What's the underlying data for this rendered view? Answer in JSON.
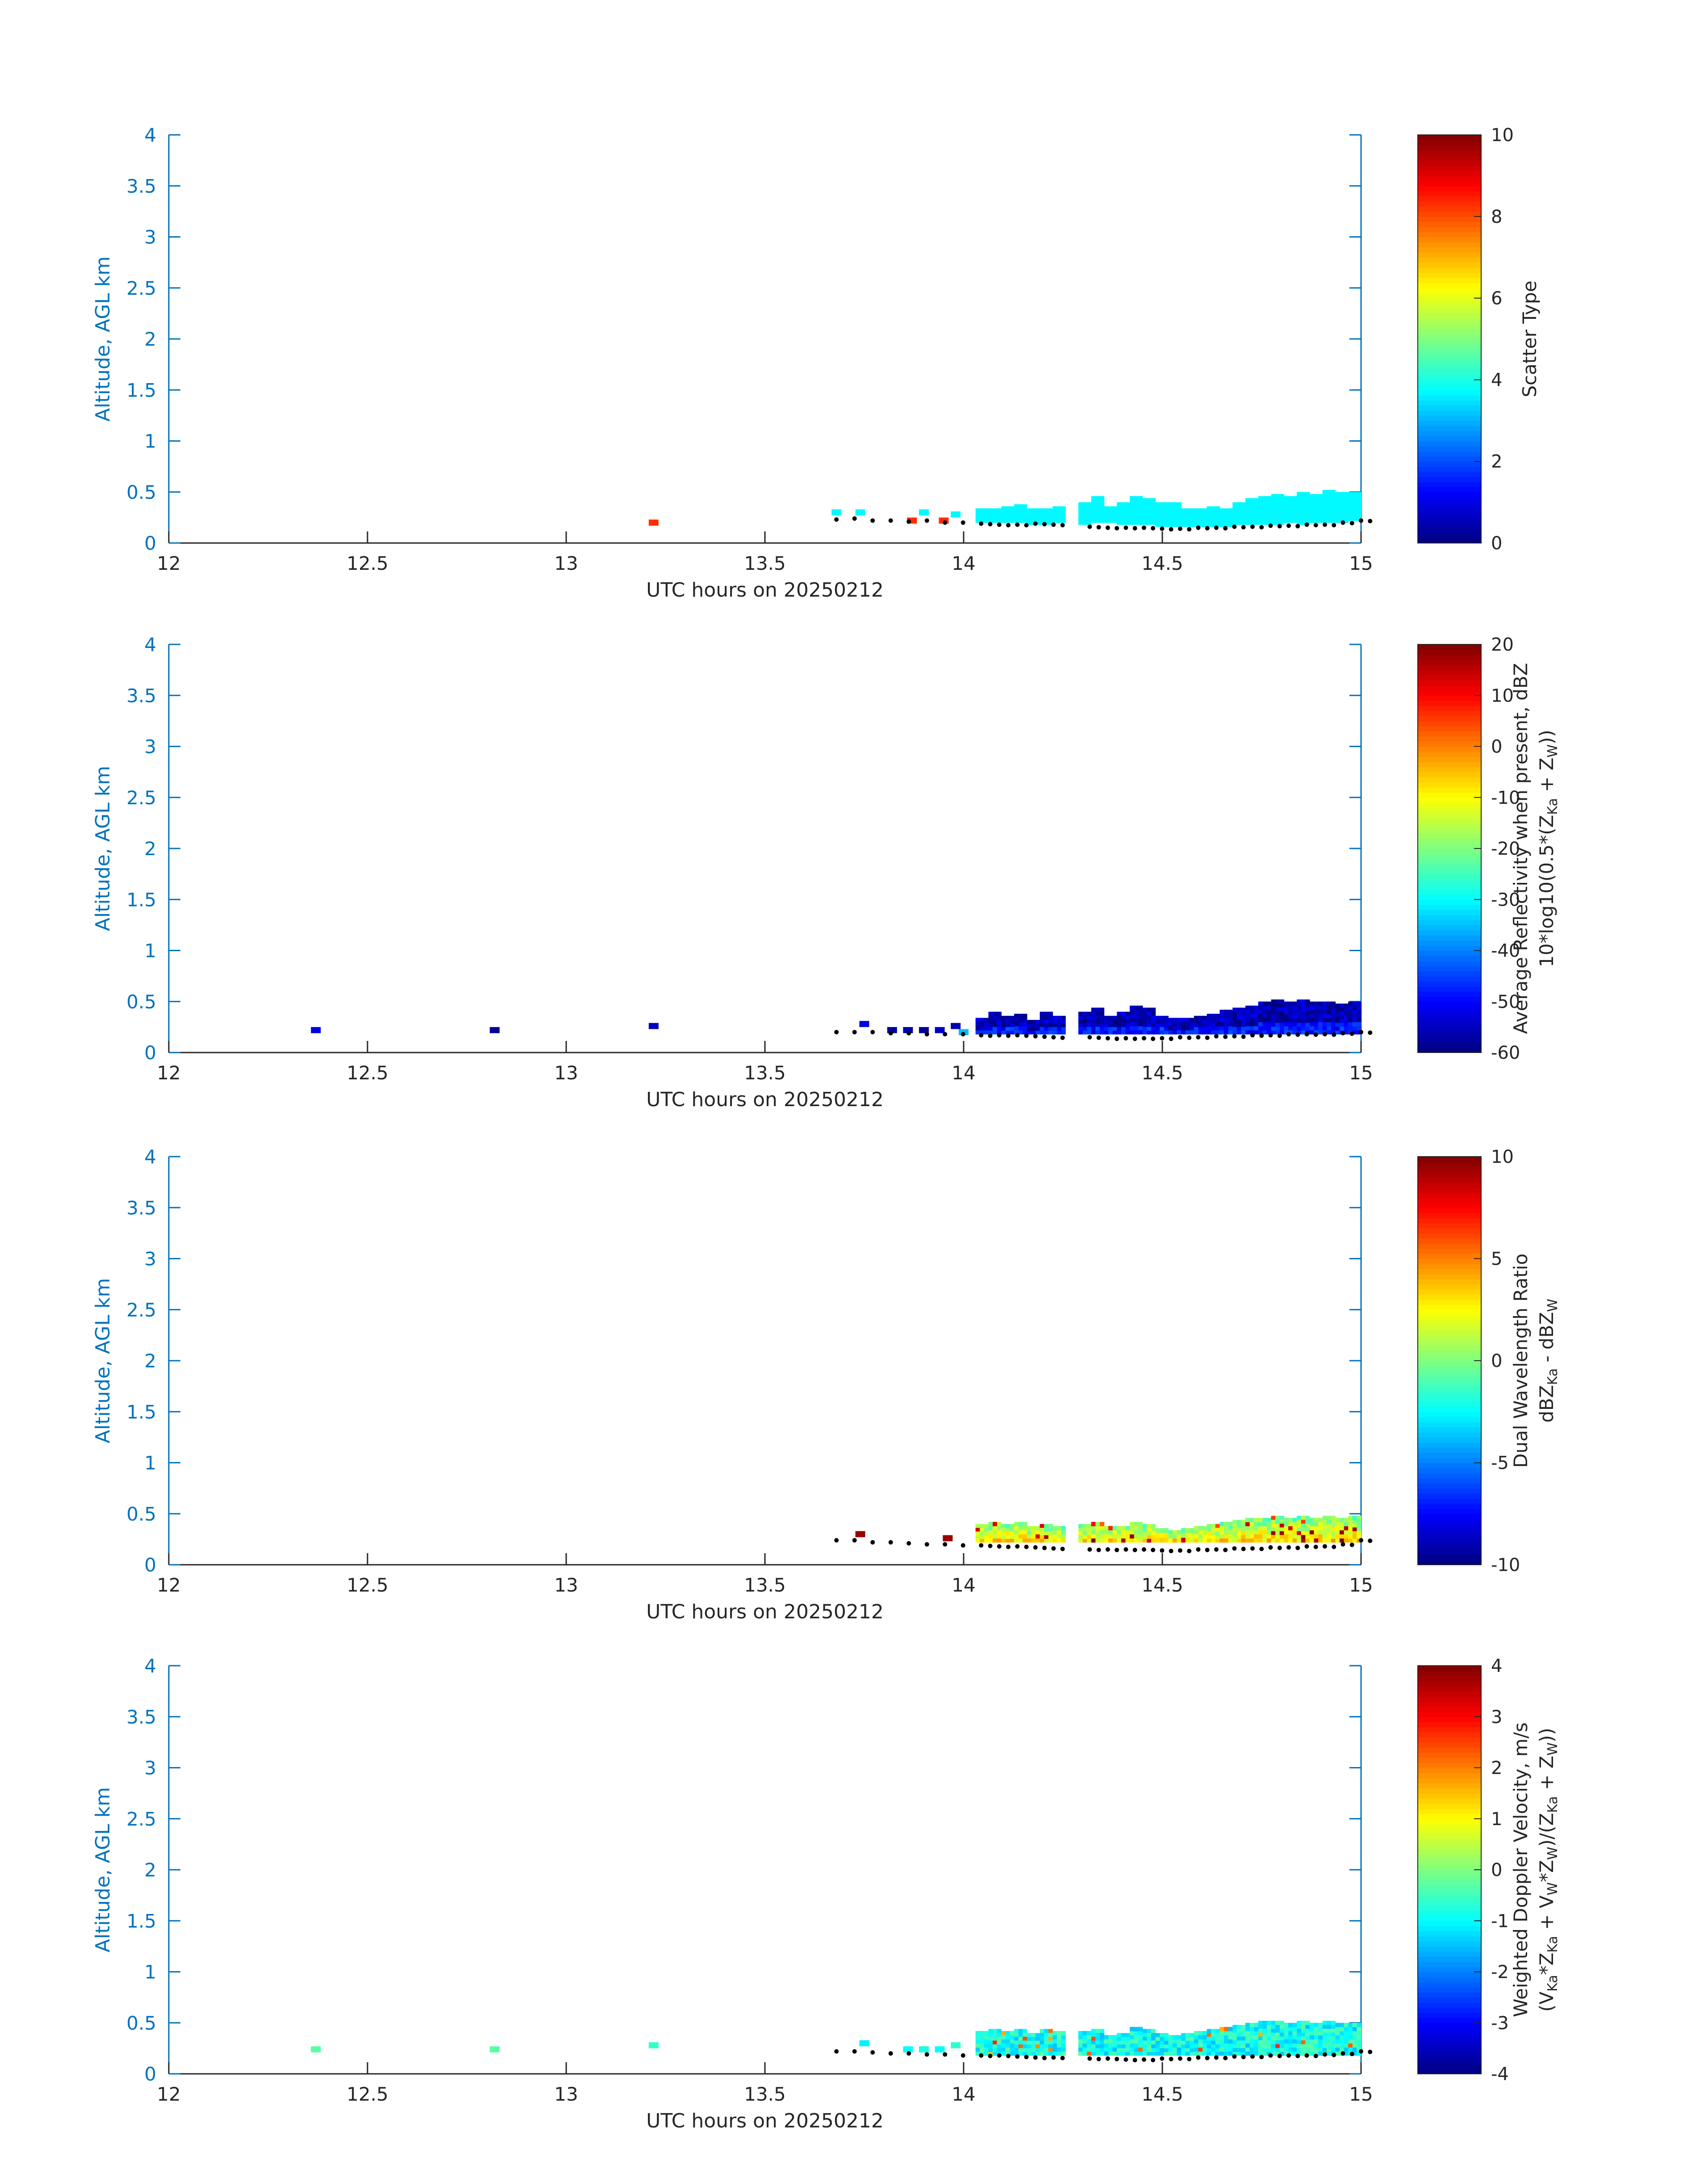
{
  "colors": {
    "axis_left": "#0072BD",
    "axis_bottom": "#262626",
    "text": "#262626",
    "bedrock_dots": "#000000",
    "colormap": "jet"
  },
  "chart_data": [
    {
      "type": "heatmap",
      "title": "",
      "xlabel": "UTC hours on 20250212",
      "ylabel": "Altitude, AGL km",
      "xlim": [
        12,
        15
      ],
      "ylim": [
        0,
        4
      ],
      "xticks": [
        "12",
        "12.5",
        "13",
        "13.5",
        "14",
        "14.5",
        "15"
      ],
      "yticks": [
        "0",
        "0.5",
        "1",
        "1.5",
        "2",
        "2.5",
        "3",
        "3.5",
        "4"
      ],
      "colorbar": {
        "label_lines": [
          "Scatter Type"
        ],
        "range": [
          0,
          10
        ],
        "ticks": [
          "0",
          "2",
          "4",
          "6",
          "8",
          "10"
        ]
      },
      "isolated_cells": [
        {
          "x": 13.22,
          "y": 0.2,
          "v": 8.3
        }
      ],
      "cell_value": 3.7,
      "cell_value_jitter": 0,
      "cloud_top_km": [
        0.34,
        0.34,
        0.36,
        0.38,
        0.34,
        0.34,
        0.36,
        0.42,
        0.4,
        0.46,
        0.36,
        0.4,
        0.46,
        0.44,
        0.4,
        0.4,
        0.34,
        0.34,
        0.36,
        0.34,
        0.4,
        0.44,
        0.46,
        0.48,
        0.46,
        0.5,
        0.48,
        0.52,
        0.5,
        0.5
      ],
      "cloud_base_km": [
        0.2,
        0.2,
        0.2,
        0.2,
        0.18,
        0.18,
        0.2,
        0.2,
        0.18,
        0.2,
        0.2,
        0.18,
        0.18,
        0.18,
        0.16,
        0.16,
        0.16,
        0.16,
        0.16,
        0.16,
        0.18,
        0.18,
        0.18,
        0.18,
        0.2,
        0.18,
        0.2,
        0.2,
        0.2,
        0.22
      ],
      "cloud_x_start": 14.03,
      "cloud_x_end": 15.0,
      "gap_x": [
        14.27,
        14.3
      ],
      "scattered_cells": [
        {
          "x": 13.68,
          "y": 0.3,
          "v": 3.7
        },
        {
          "x": 13.74,
          "y": 0.3,
          "v": 3.7
        },
        {
          "x": 13.87,
          "y": 0.22,
          "v": 8.3
        },
        {
          "x": 13.9,
          "y": 0.3,
          "v": 3.7
        },
        {
          "x": 13.95,
          "y": 0.22,
          "v": 8.3
        },
        {
          "x": 13.98,
          "y": 0.28,
          "v": 3.7
        }
      ],
      "surface_dots_km": [
        0.23,
        0.24,
        0.22,
        0.22,
        0.21,
        0.22,
        0.2,
        0.2,
        0.19,
        0.18,
        0.18,
        0.19,
        0.18,
        0.17,
        0.16,
        0.15,
        0.15,
        0.15,
        0.14,
        0.14,
        0.15,
        0.15,
        0.16,
        0.16,
        0.17,
        0.17,
        0.18,
        0.18,
        0.2,
        0.22
      ]
    },
    {
      "type": "heatmap",
      "title": "",
      "xlabel": "UTC hours on 20250212",
      "ylabel": "Altitude, AGL km",
      "xlim": [
        12,
        15
      ],
      "ylim": [
        0,
        4
      ],
      "xticks": [
        "12",
        "12.5",
        "13",
        "13.5",
        "14",
        "14.5",
        "15"
      ],
      "yticks": [
        "0",
        "0.5",
        "1",
        "1.5",
        "2",
        "2.5",
        "3",
        "3.5",
        "4"
      ],
      "colorbar": {
        "label_lines": [
          "Average Reflectivity when present, dBZ",
          "10*log10(0.5*(Z_Ka + Z_W))"
        ],
        "range": [
          -60,
          20
        ],
        "ticks": [
          "-60",
          "-50",
          "-40",
          "-30",
          "-20",
          "-10",
          "0",
          "10",
          "20"
        ]
      },
      "isolated_cells": [
        {
          "x": 12.37,
          "y": 0.22,
          "v": -52
        },
        {
          "x": 12.82,
          "y": 0.22,
          "v": -58
        },
        {
          "x": 13.22,
          "y": 0.26,
          "v": -55
        }
      ],
      "cell_value": -56,
      "cell_value_jitter": 5,
      "cloud_top_km": [
        0.34,
        0.4,
        0.36,
        0.38,
        0.32,
        0.4,
        0.36,
        0.42,
        0.4,
        0.44,
        0.36,
        0.4,
        0.46,
        0.44,
        0.36,
        0.34,
        0.34,
        0.36,
        0.38,
        0.42,
        0.44,
        0.46,
        0.5,
        0.52,
        0.5,
        0.52,
        0.5,
        0.5,
        0.48,
        0.5
      ],
      "cloud_base_km": [
        0.18,
        0.18,
        0.18,
        0.18,
        0.18,
        0.18,
        0.18,
        0.18,
        0.18,
        0.18,
        0.18,
        0.18,
        0.18,
        0.18,
        0.18,
        0.18,
        0.18,
        0.18,
        0.18,
        0.18,
        0.18,
        0.18,
        0.18,
        0.18,
        0.18,
        0.18,
        0.18,
        0.18,
        0.18,
        0.18
      ],
      "cloud_x_start": 14.03,
      "cloud_x_end": 15.0,
      "gap_x": [
        14.27,
        14.3
      ],
      "scattered_cells": [
        {
          "x": 13.75,
          "y": 0.28,
          "v": -52
        },
        {
          "x": 13.82,
          "y": 0.22,
          "v": -58
        },
        {
          "x": 13.86,
          "y": 0.22,
          "v": -56
        },
        {
          "x": 13.9,
          "y": 0.22,
          "v": -58
        },
        {
          "x": 13.94,
          "y": 0.22,
          "v": -54
        },
        {
          "x": 13.98,
          "y": 0.26,
          "v": -56
        },
        {
          "x": 14.0,
          "y": 0.2,
          "v": -35
        }
      ],
      "surface_dots_km": [
        0.2,
        0.2,
        0.2,
        0.19,
        0.19,
        0.18,
        0.18,
        0.18,
        0.17,
        0.17,
        0.17,
        0.16,
        0.15,
        0.15,
        0.15,
        0.14,
        0.14,
        0.14,
        0.14,
        0.15,
        0.15,
        0.16,
        0.16,
        0.17,
        0.17,
        0.18,
        0.18,
        0.18,
        0.19,
        0.2
      ]
    },
    {
      "type": "heatmap",
      "title": "",
      "xlabel": "UTC hours on 20250212",
      "ylabel": "Altitude, AGL km",
      "xlim": [
        12,
        15
      ],
      "ylim": [
        0,
        4
      ],
      "xticks": [
        "12",
        "12.5",
        "13",
        "13.5",
        "14",
        "14.5",
        "15"
      ],
      "yticks": [
        "0",
        "0.5",
        "1",
        "1.5",
        "2",
        "2.5",
        "3",
        "3.5",
        "4"
      ],
      "colorbar": {
        "label_lines": [
          "Dual Wavelength Ratio",
          "dBZ_Ka - dBZ_W"
        ],
        "range": [
          -10,
          10
        ],
        "ticks": [
          "-10",
          "-5",
          "0",
          "5",
          "10"
        ]
      },
      "isolated_cells": [
        {
          "x": 13.74,
          "y": 0.3,
          "v": 9.5
        }
      ],
      "cell_value": 1.5,
      "cell_value_jitter": 3,
      "cloud_top_km": [
        0.4,
        0.42,
        0.4,
        0.42,
        0.38,
        0.4,
        0.38,
        0.42,
        0.4,
        0.42,
        0.38,
        0.38,
        0.42,
        0.4,
        0.36,
        0.34,
        0.36,
        0.38,
        0.4,
        0.42,
        0.44,
        0.46,
        0.46,
        0.48,
        0.46,
        0.48,
        0.46,
        0.48,
        0.46,
        0.48
      ],
      "cloud_base_km": [
        0.22,
        0.22,
        0.22,
        0.22,
        0.22,
        0.22,
        0.22,
        0.22,
        0.22,
        0.22,
        0.22,
        0.22,
        0.22,
        0.22,
        0.22,
        0.22,
        0.22,
        0.22,
        0.22,
        0.22,
        0.22,
        0.22,
        0.22,
        0.22,
        0.22,
        0.22,
        0.22,
        0.22,
        0.22,
        0.22
      ],
      "cloud_x_start": 14.03,
      "cloud_x_end": 15.0,
      "gap_x": [
        14.27,
        14.3
      ],
      "scattered_cells": [
        {
          "x": 13.96,
          "y": 0.26,
          "v": 9.5
        }
      ],
      "surface_dots_km": [
        0.24,
        0.24,
        0.22,
        0.22,
        0.21,
        0.2,
        0.2,
        0.19,
        0.19,
        0.18,
        0.18,
        0.17,
        0.16,
        0.16,
        0.15,
        0.15,
        0.15,
        0.15,
        0.14,
        0.14,
        0.15,
        0.15,
        0.16,
        0.16,
        0.17,
        0.17,
        0.18,
        0.18,
        0.2,
        0.24
      ]
    },
    {
      "type": "heatmap",
      "title": "",
      "xlabel": "UTC hours on 20250212",
      "ylabel": "Altitude, AGL km",
      "xlim": [
        12,
        15
      ],
      "ylim": [
        0,
        4
      ],
      "xticks": [
        "12",
        "12.5",
        "13",
        "13.5",
        "14",
        "14.5",
        "15"
      ],
      "yticks": [
        "0",
        "0.5",
        "1",
        "1.5",
        "2",
        "2.5",
        "3",
        "3.5",
        "4"
      ],
      "colorbar": {
        "label_lines": [
          "Weighted Doppler Velocity, m/s",
          "(V_Ka*Z_Ka + V_W*Z_W)/(Z_Ka + Z_W))"
        ],
        "range": [
          -4,
          4
        ],
        "ticks": [
          "-4",
          "-3",
          "-2",
          "-1",
          "0",
          "1",
          "2",
          "3",
          "4"
        ]
      },
      "isolated_cells": [
        {
          "x": 12.37,
          "y": 0.24,
          "v": -0.3
        },
        {
          "x": 12.82,
          "y": 0.24,
          "v": -0.3
        },
        {
          "x": 13.22,
          "y": 0.28,
          "v": -0.6
        }
      ],
      "cell_value": -0.9,
      "cell_value_jitter": 0.6,
      "cloud_top_km": [
        0.42,
        0.44,
        0.42,
        0.44,
        0.4,
        0.44,
        0.42,
        0.44,
        0.42,
        0.44,
        0.38,
        0.4,
        0.46,
        0.44,
        0.4,
        0.38,
        0.4,
        0.42,
        0.44,
        0.46,
        0.48,
        0.5,
        0.52,
        0.52,
        0.5,
        0.52,
        0.5,
        0.52,
        0.5,
        0.5
      ],
      "cloud_base_km": [
        0.18,
        0.18,
        0.18,
        0.18,
        0.18,
        0.18,
        0.18,
        0.18,
        0.18,
        0.18,
        0.18,
        0.18,
        0.18,
        0.18,
        0.18,
        0.18,
        0.18,
        0.18,
        0.18,
        0.18,
        0.18,
        0.18,
        0.18,
        0.18,
        0.18,
        0.18,
        0.18,
        0.18,
        0.18,
        0.18
      ],
      "cloud_x_start": 14.03,
      "cloud_x_end": 15.0,
      "gap_x": [
        14.27,
        14.3
      ],
      "scattered_cells": [
        {
          "x": 13.75,
          "y": 0.3,
          "v": -1.1
        },
        {
          "x": 13.86,
          "y": 0.24,
          "v": -1.0
        },
        {
          "x": 13.9,
          "y": 0.24,
          "v": -0.8
        },
        {
          "x": 13.94,
          "y": 0.24,
          "v": -1.0
        },
        {
          "x": 13.98,
          "y": 0.28,
          "v": -0.6
        }
      ],
      "surface_dots_km": [
        0.22,
        0.22,
        0.21,
        0.2,
        0.2,
        0.19,
        0.19,
        0.18,
        0.18,
        0.18,
        0.17,
        0.16,
        0.16,
        0.15,
        0.15,
        0.15,
        0.14,
        0.14,
        0.15,
        0.15,
        0.16,
        0.16,
        0.17,
        0.17,
        0.18,
        0.18,
        0.18,
        0.19,
        0.2,
        0.22
      ]
    }
  ]
}
